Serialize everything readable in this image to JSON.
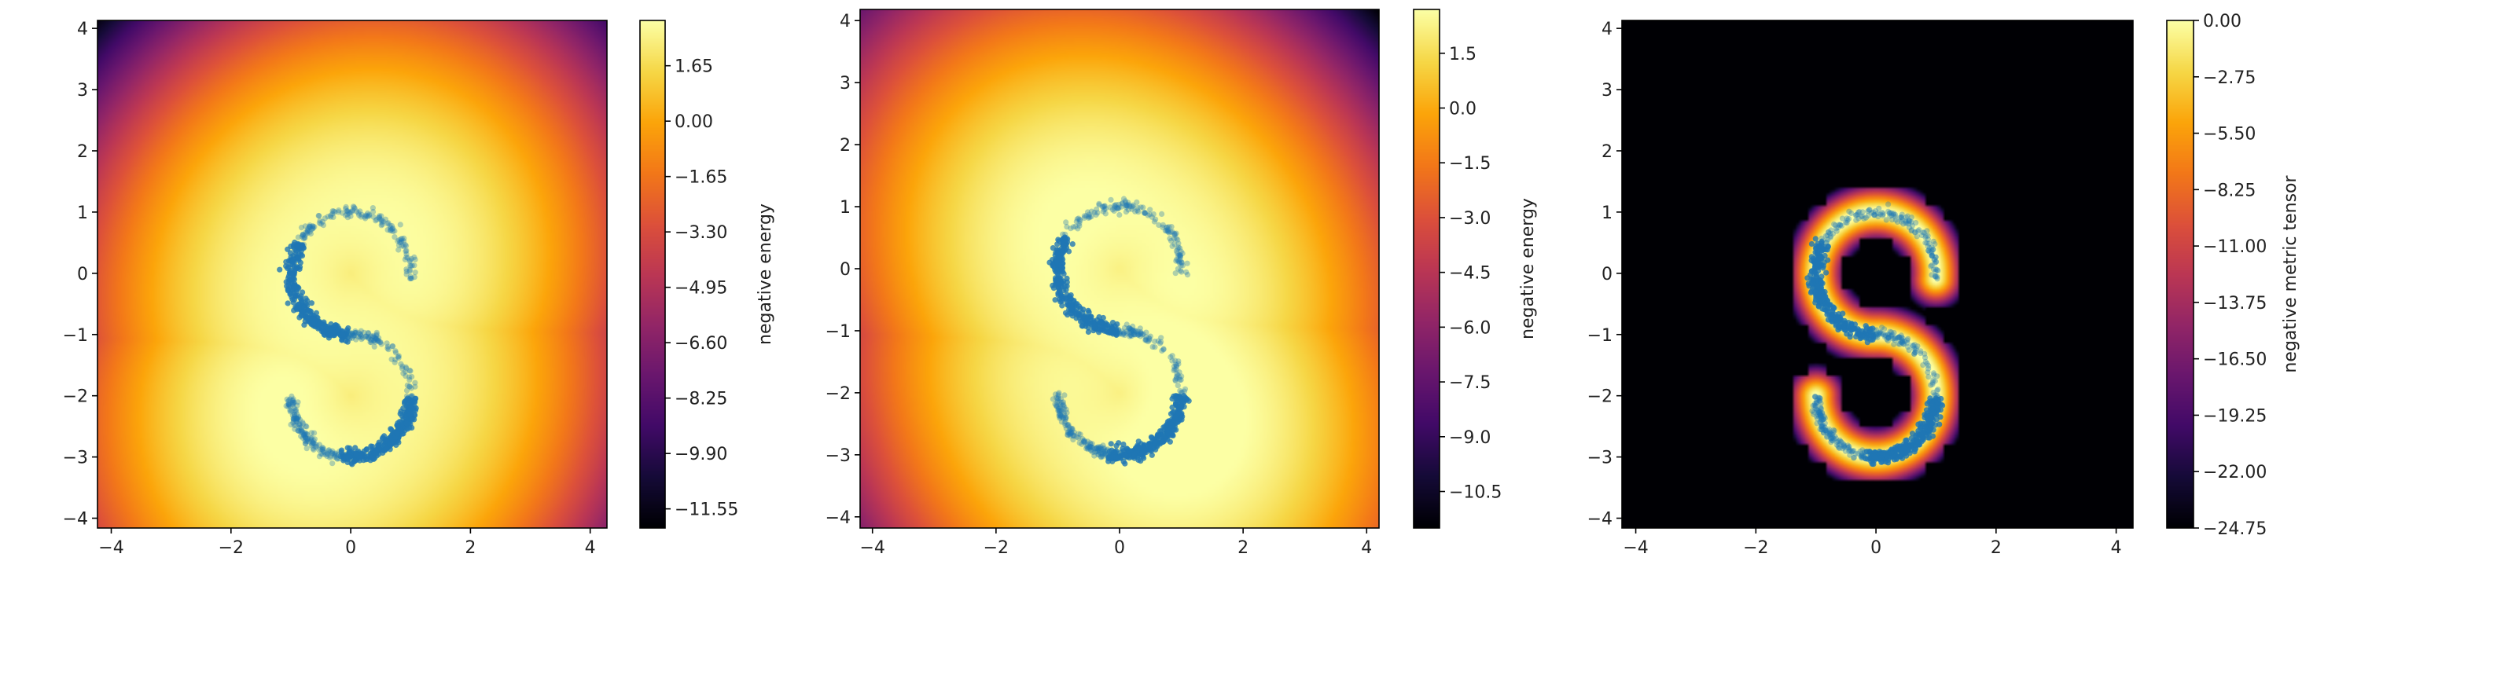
{
  "chart_data": [
    {
      "type": "heatmap",
      "colormap": "inferno",
      "xlim": [
        -4.23,
        4.28
      ],
      "ylim": [
        -4.16,
        4.13
      ],
      "xticks": [
        "−4",
        "−2",
        "0",
        "2",
        "4"
      ],
      "yticks": [
        "−4",
        "−3",
        "−2",
        "−1",
        "0",
        "1",
        "2",
        "3",
        "4"
      ],
      "colorbar": {
        "label": "negative energy",
        "range": [
          -12.12,
          3.0
        ],
        "ticks": [
          "1.65",
          "0.00",
          "−1.65",
          "−3.30",
          "−4.95",
          "−6.60",
          "−8.25",
          "−9.90",
          "−11.55"
        ]
      },
      "overlay": {
        "type": "scatter",
        "shape": "S-curve",
        "color": "#1f77b4"
      }
    },
    {
      "type": "heatmap",
      "colormap": "inferno",
      "xlim": [
        -4.2,
        4.2
      ],
      "ylim": [
        -4.18,
        4.18
      ],
      "xticks": [
        "−4",
        "−2",
        "0",
        "2",
        "4"
      ],
      "yticks": [
        "−4",
        "−3",
        "−2",
        "−1",
        "0",
        "1",
        "2",
        "3",
        "4"
      ],
      "colorbar": {
        "label": "negative energy",
        "range": [
          -11.5,
          2.7
        ],
        "ticks": [
          "1.5",
          "0.0",
          "−1.5",
          "−3.0",
          "−4.5",
          "−6.0",
          "−7.5",
          "−9.0",
          "−10.5"
        ]
      },
      "overlay": {
        "type": "scatter",
        "shape": "S-curve",
        "color": "#1f77b4"
      }
    },
    {
      "type": "heatmap",
      "colormap": "inferno",
      "xlim": [
        -4.23,
        4.28
      ],
      "ylim": [
        -4.16,
        4.13
      ],
      "xticks": [
        "−4",
        "−2",
        "0",
        "2",
        "4"
      ],
      "yticks": [
        "−4",
        "−3",
        "−2",
        "−1",
        "0",
        "1",
        "2",
        "3",
        "4"
      ],
      "colorbar": {
        "label": "negative metric tensor",
        "range": [
          -24.75,
          0.0
        ],
        "ticks": [
          "0.00",
          "−2.75",
          "−5.50",
          "−8.25",
          "−11.00",
          "−13.75",
          "−16.50",
          "−19.25",
          "−22.00",
          "−24.75"
        ]
      },
      "overlay": {
        "type": "scatter",
        "shape": "S-curve",
        "color": "#1f77b4"
      }
    }
  ]
}
